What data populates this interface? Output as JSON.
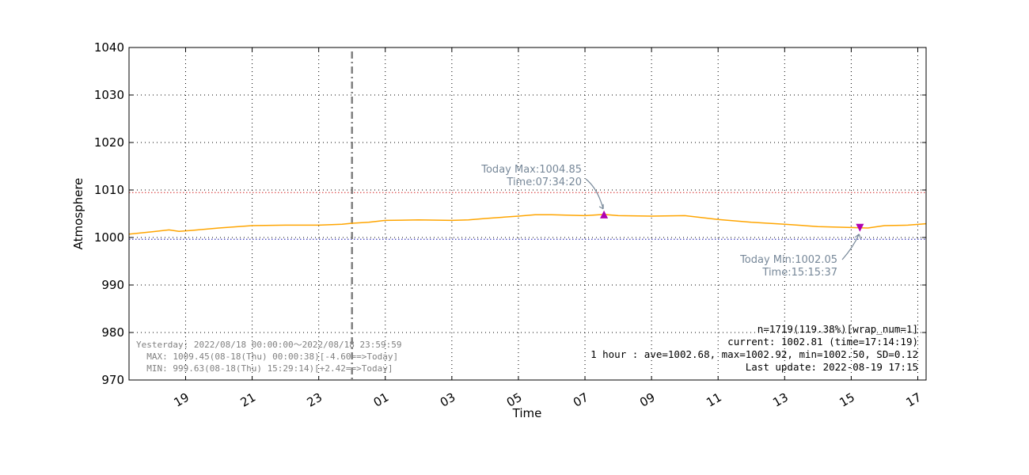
{
  "chart_data": {
    "type": "line",
    "xlabel": "Time",
    "ylabel": "Atmosphere",
    "ylim": [
      970,
      1040
    ],
    "xlim_hours": [
      -6.7,
      17.25
    ],
    "y_ticks": [
      "970",
      "980",
      "990",
      "1000",
      "1010",
      "1020",
      "1030",
      "1040"
    ],
    "x_ticks": [
      {
        "label": "19",
        "h": -5
      },
      {
        "label": "21",
        "h": -3
      },
      {
        "label": "23",
        "h": -1
      },
      {
        "label": "01",
        "h": 1
      },
      {
        "label": "03",
        "h": 3
      },
      {
        "label": "05",
        "h": 5
      },
      {
        "label": "07",
        "h": 7
      },
      {
        "label": "09",
        "h": 9
      },
      {
        "label": "11",
        "h": 11
      },
      {
        "label": "13",
        "h": 13
      },
      {
        "label": "15",
        "h": 15
      },
      {
        "label": "17",
        "h": 17
      }
    ],
    "grid": true,
    "midnight_line_h": 0,
    "reference_lines": [
      {
        "value": 1009.45,
        "color": "#e06060",
        "meaning": "yesterday max"
      },
      {
        "value": 999.63,
        "color": "#4040c0",
        "meaning": "yesterday min"
      }
    ],
    "series": [
      {
        "color": "#ffa500",
        "points": [
          [
            -6.7,
            1000.7
          ],
          [
            -6.0,
            1001.2
          ],
          [
            -5.5,
            1001.6
          ],
          [
            -5.2,
            1001.3
          ],
          [
            -4.8,
            1001.5
          ],
          [
            -4.0,
            1002.0
          ],
          [
            -3.0,
            1002.5
          ],
          [
            -2.0,
            1002.6
          ],
          [
            -1.0,
            1002.6
          ],
          [
            -0.3,
            1002.8
          ],
          [
            0.0,
            1003.0
          ],
          [
            0.5,
            1003.2
          ],
          [
            1.0,
            1003.6
          ],
          [
            2.0,
            1003.7
          ],
          [
            3.0,
            1003.6
          ],
          [
            3.5,
            1003.7
          ],
          [
            4.0,
            1004.0
          ],
          [
            5.0,
            1004.5
          ],
          [
            5.5,
            1004.8
          ],
          [
            6.0,
            1004.8
          ],
          [
            7.0,
            1004.6
          ],
          [
            7.57,
            1004.85
          ],
          [
            8.0,
            1004.6
          ],
          [
            9.0,
            1004.5
          ],
          [
            10.0,
            1004.6
          ],
          [
            11.0,
            1003.8
          ],
          [
            12.0,
            1003.2
          ],
          [
            13.0,
            1002.8
          ],
          [
            14.0,
            1002.3
          ],
          [
            15.0,
            1002.1
          ],
          [
            15.26,
            1002.05
          ],
          [
            15.5,
            1002.0
          ],
          [
            16.0,
            1002.5
          ],
          [
            16.7,
            1002.6
          ],
          [
            17.24,
            1002.9
          ]
        ]
      }
    ],
    "markers": [
      {
        "kind": "max",
        "h": 7.572,
        "value": 1004.85,
        "color": "#b000b0"
      },
      {
        "kind": "min",
        "h": 15.26,
        "value": 1002.05,
        "color": "#b000b0"
      }
    ],
    "annotations": {
      "max_line1": "Today Max:1004.85",
      "max_line2": "Time:07:34:20",
      "min_line1": "Today Min:1002.05",
      "min_line2": "Time:15:15:37"
    },
    "info_box": [
      "n=1719(119.38%)[wrap_num=1]",
      "current: 1002.81 (time=17:14:19)",
      "1 hour : ave=1002.68, max=1002.92, min=1002.50, SD=0.12",
      "Last update: 2022-08-19 17:15"
    ],
    "yesterday_box": [
      "Yesterday: 2022/08/18 00:00:00～2022/08/18 23:59:59",
      "  MAX: 1009.45(08-18(Thu) 00:00:38)[-4.60==>Today]",
      "  MIN: 999.63(08-18(Thu) 15:29:14)[+2.42==>Today]"
    ]
  }
}
